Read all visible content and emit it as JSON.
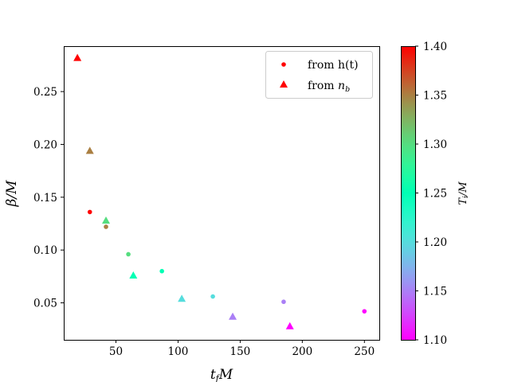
{
  "chart_data": {
    "type": "scatter",
    "title": "",
    "xlabel": "t_f M",
    "ylabel": "β/M",
    "xlim": [
      8,
      262
    ],
    "ylim": [
      0.015,
      0.293
    ],
    "xticks": [
      50,
      100,
      150,
      200,
      250
    ],
    "yticks": [
      0.05,
      0.1,
      0.15,
      0.2,
      0.25
    ],
    "grid": false,
    "legend": {
      "placement": "top-right"
    },
    "colorbar": {
      "label": "T_i/M",
      "range": [
        1.1,
        1.4
      ],
      "ticks": [
        1.1,
        1.15,
        1.2,
        1.25,
        1.3,
        1.35,
        1.4
      ],
      "colormap": "rainbow"
    },
    "series": [
      {
        "name": "from h(t)",
        "marker": "circle",
        "points": [
          {
            "x": 29,
            "y": 0.136,
            "c": 1.4
          },
          {
            "x": 42,
            "y": 0.122,
            "c": 1.35
          },
          {
            "x": 60,
            "y": 0.096,
            "c": 1.3
          },
          {
            "x": 87,
            "y": 0.08,
            "c": 1.25
          },
          {
            "x": 128,
            "y": 0.056,
            "c": 1.2
          },
          {
            "x": 185,
            "y": 0.051,
            "c": 1.15
          },
          {
            "x": 250,
            "y": 0.042,
            "c": 1.1
          }
        ]
      },
      {
        "name": "from n_b",
        "marker": "triangle",
        "points": [
          {
            "x": 19,
            "y": 0.282,
            "c": 1.4
          },
          {
            "x": 29,
            "y": 0.194,
            "c": 1.35
          },
          {
            "x": 42,
            "y": 0.128,
            "c": 1.3
          },
          {
            "x": 64,
            "y": 0.076,
            "c": 1.25
          },
          {
            "x": 103,
            "y": 0.054,
            "c": 1.2
          },
          {
            "x": 144,
            "y": 0.037,
            "c": 1.15
          },
          {
            "x": 190,
            "y": 0.028,
            "c": 1.1
          }
        ]
      }
    ]
  }
}
